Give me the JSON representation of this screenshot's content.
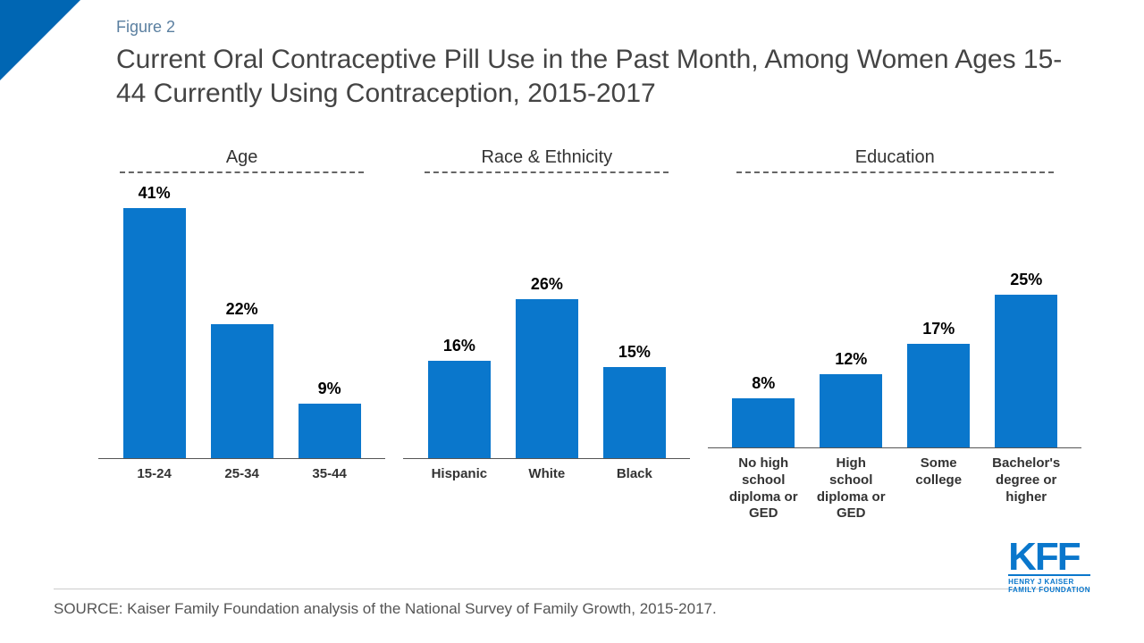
{
  "figure_label": "Figure 2",
  "title": "Current Oral Contraceptive Pill Use in the Past Month, Among Women Ages 15-44 Currently Using Contraception, 2015-2017",
  "chart": {
    "type": "bar",
    "y_max_percent": 41,
    "bar_color": "#0a77cc",
    "axis_color": "#555555",
    "label_fontsize_pt": 15,
    "value_fontsize_pt": 18,
    "group_title_fontsize_pt": 20,
    "groups": [
      {
        "title": "Age",
        "bars": [
          {
            "label": "15-24",
            "value": 41,
            "display": "41%"
          },
          {
            "label": "25-34",
            "value": 22,
            "display": "22%"
          },
          {
            "label": "35-44",
            "value": 9,
            "display": "9%"
          }
        ]
      },
      {
        "title": "Race & Ethnicity",
        "bars": [
          {
            "label": "Hispanic",
            "value": 16,
            "display": "16%"
          },
          {
            "label": "White",
            "value": 26,
            "display": "26%"
          },
          {
            "label": "Black",
            "value": 15,
            "display": "15%"
          }
        ]
      },
      {
        "title": "Education",
        "bars": [
          {
            "label": "No high school diploma or GED",
            "value": 8,
            "display": "8%"
          },
          {
            "label": "High school diploma or GED",
            "value": 12,
            "display": "12%"
          },
          {
            "label": "Some college",
            "value": 17,
            "display": "17%"
          },
          {
            "label": "Bachelor's degree or higher",
            "value": 25,
            "display": "25%"
          }
        ]
      }
    ]
  },
  "source": "SOURCE: Kaiser Family Foundation analysis of the National Survey of Family Growth, 2015-2017.",
  "logo": {
    "text": "KFF",
    "subtext1": "HENRY J KAISER",
    "subtext2": "FAMILY FOUNDATION",
    "color": "#0a77cc"
  }
}
